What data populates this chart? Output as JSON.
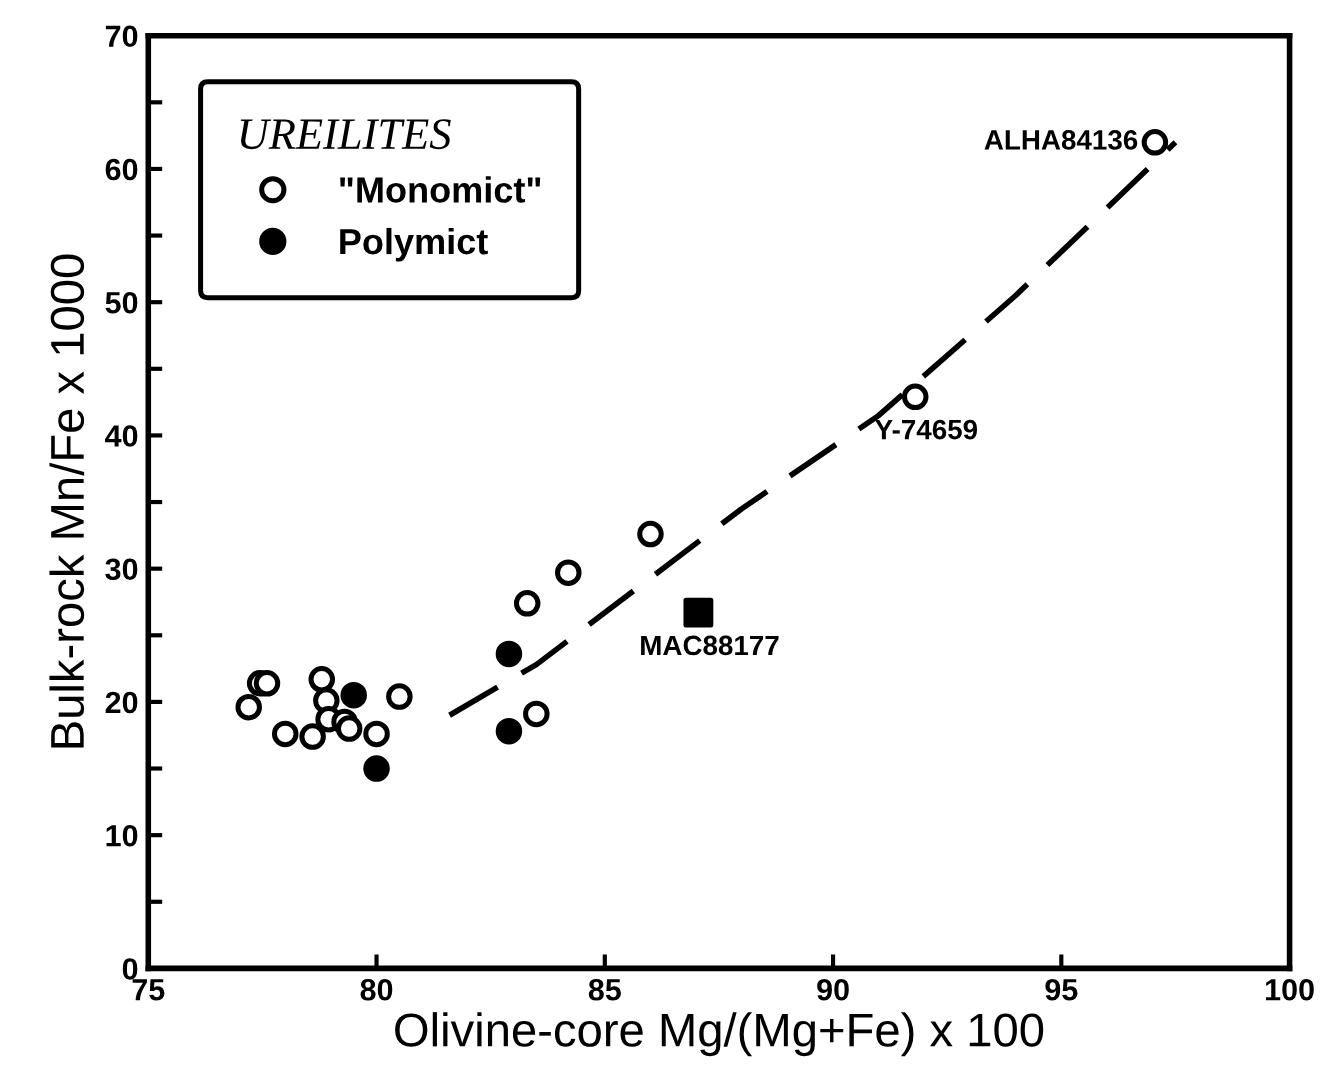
{
  "chart_data": {
    "type": "scatter",
    "xlabel": "Olivine-core Mg/(Mg+Fe) x 100",
    "ylabel": "Bulk-rock Mn/Fe x 1000",
    "legend_title": "UREILITES",
    "legend": "top left",
    "grid": false,
    "xlim": [
      75,
      100
    ],
    "ylim": [
      0,
      70
    ],
    "xticks": [
      75,
      80,
      85,
      90,
      95,
      100
    ],
    "yticks": [
      0,
      {
        "value": 5,
        "label": null
      },
      10,
      {
        "value": 15,
        "label": null
      },
      20,
      {
        "value": 25,
        "label": null
      },
      30,
      {
        "value": 35,
        "label": null
      },
      40,
      {
        "value": 45,
        "label": null
      },
      50,
      {
        "value": 55,
        "label": null
      },
      60,
      {
        "value": 65,
        "label": null
      },
      70
    ],
    "series": [
      {
        "name": "\"Monomict\"",
        "marker": "circle",
        "color": "#ffffff",
        "x": [
          77.2,
          77.45,
          77.6,
          78.0,
          78.6,
          78.8,
          78.9,
          78.95,
          79.3,
          79.4,
          80.0,
          80.5,
          83.3,
          83.5,
          84.2,
          86.0,
          91.8,
          97.05
        ],
        "values": [
          19.6,
          21.4,
          21.4,
          17.6,
          17.4,
          21.7,
          20.1,
          18.7,
          18.5,
          18.0,
          17.6,
          20.4,
          27.4,
          19.1,
          29.7,
          32.6,
          42.9,
          62.0
        ]
      },
      {
        "name": "Polymict",
        "marker": "circle",
        "color": "#000000",
        "x": [
          79.5,
          80.0,
          82.9,
          82.9
        ],
        "values": [
          20.5,
          15.0,
          23.6,
          17.8
        ]
      },
      {
        "marker": "square",
        "color": "#000000",
        "x": [
          87.05
        ],
        "values": [
          26.7
        ]
      },
      {
        "type": "line",
        "marker": "none",
        "line_style": "dashed",
        "color": "#000000",
        "x": [
          81.6,
          83.5,
          86.0,
          88.0,
          91.0,
          94.0,
          97.5
        ],
        "values": [
          19.0,
          22.8,
          29.3,
          34.5,
          41.5,
          50.5,
          62.0
        ]
      }
    ],
    "annotations": [
      {
        "text": "ALHA84136",
        "x": 97.05,
        "y": 62.0
      },
      {
        "text": "Y-74659",
        "x": 91.8,
        "y": 42.9
      },
      {
        "text": "MAC88177",
        "x": 87.05,
        "y": 26.7
      }
    ]
  }
}
